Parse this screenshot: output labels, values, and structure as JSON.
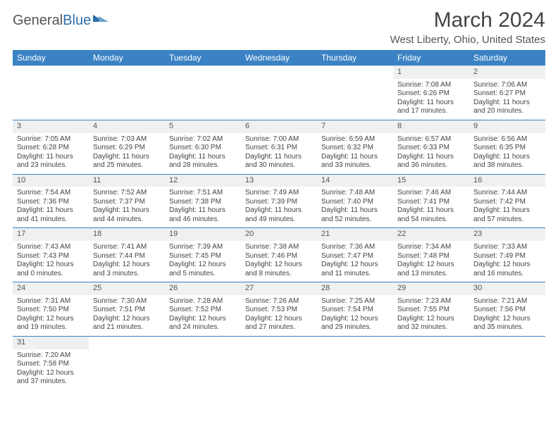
{
  "brand": {
    "general": "General",
    "blue": "Blue"
  },
  "title": "March 2024",
  "location": "West Liberty, Ohio, United States",
  "header_bg": "#3b82c4",
  "header_fg": "#ffffff",
  "rule_color": "#3b82c4",
  "daynum_bg": "#eef0f1",
  "text_color": "#444444",
  "weekdays": [
    "Sunday",
    "Monday",
    "Tuesday",
    "Wednesday",
    "Thursday",
    "Friday",
    "Saturday"
  ],
  "weeks": [
    [
      null,
      null,
      null,
      null,
      null,
      {
        "n": "1",
        "sr": "Sunrise: 7:08 AM",
        "ss": "Sunset: 6:26 PM",
        "d1": "Daylight: 11 hours",
        "d2": "and 17 minutes."
      },
      {
        "n": "2",
        "sr": "Sunrise: 7:06 AM",
        "ss": "Sunset: 6:27 PM",
        "d1": "Daylight: 11 hours",
        "d2": "and 20 minutes."
      }
    ],
    [
      {
        "n": "3",
        "sr": "Sunrise: 7:05 AM",
        "ss": "Sunset: 6:28 PM",
        "d1": "Daylight: 11 hours",
        "d2": "and 23 minutes."
      },
      {
        "n": "4",
        "sr": "Sunrise: 7:03 AM",
        "ss": "Sunset: 6:29 PM",
        "d1": "Daylight: 11 hours",
        "d2": "and 25 minutes."
      },
      {
        "n": "5",
        "sr": "Sunrise: 7:02 AM",
        "ss": "Sunset: 6:30 PM",
        "d1": "Daylight: 11 hours",
        "d2": "and 28 minutes."
      },
      {
        "n": "6",
        "sr": "Sunrise: 7:00 AM",
        "ss": "Sunset: 6:31 PM",
        "d1": "Daylight: 11 hours",
        "d2": "and 30 minutes."
      },
      {
        "n": "7",
        "sr": "Sunrise: 6:59 AM",
        "ss": "Sunset: 6:32 PM",
        "d1": "Daylight: 11 hours",
        "d2": "and 33 minutes."
      },
      {
        "n": "8",
        "sr": "Sunrise: 6:57 AM",
        "ss": "Sunset: 6:33 PM",
        "d1": "Daylight: 11 hours",
        "d2": "and 36 minutes."
      },
      {
        "n": "9",
        "sr": "Sunrise: 6:56 AM",
        "ss": "Sunset: 6:35 PM",
        "d1": "Daylight: 11 hours",
        "d2": "and 38 minutes."
      }
    ],
    [
      {
        "n": "10",
        "sr": "Sunrise: 7:54 AM",
        "ss": "Sunset: 7:36 PM",
        "d1": "Daylight: 11 hours",
        "d2": "and 41 minutes."
      },
      {
        "n": "11",
        "sr": "Sunrise: 7:52 AM",
        "ss": "Sunset: 7:37 PM",
        "d1": "Daylight: 11 hours",
        "d2": "and 44 minutes."
      },
      {
        "n": "12",
        "sr": "Sunrise: 7:51 AM",
        "ss": "Sunset: 7:38 PM",
        "d1": "Daylight: 11 hours",
        "d2": "and 46 minutes."
      },
      {
        "n": "13",
        "sr": "Sunrise: 7:49 AM",
        "ss": "Sunset: 7:39 PM",
        "d1": "Daylight: 11 hours",
        "d2": "and 49 minutes."
      },
      {
        "n": "14",
        "sr": "Sunrise: 7:48 AM",
        "ss": "Sunset: 7:40 PM",
        "d1": "Daylight: 11 hours",
        "d2": "and 52 minutes."
      },
      {
        "n": "15",
        "sr": "Sunrise: 7:46 AM",
        "ss": "Sunset: 7:41 PM",
        "d1": "Daylight: 11 hours",
        "d2": "and 54 minutes."
      },
      {
        "n": "16",
        "sr": "Sunrise: 7:44 AM",
        "ss": "Sunset: 7:42 PM",
        "d1": "Daylight: 11 hours",
        "d2": "and 57 minutes."
      }
    ],
    [
      {
        "n": "17",
        "sr": "Sunrise: 7:43 AM",
        "ss": "Sunset: 7:43 PM",
        "d1": "Daylight: 12 hours",
        "d2": "and 0 minutes."
      },
      {
        "n": "18",
        "sr": "Sunrise: 7:41 AM",
        "ss": "Sunset: 7:44 PM",
        "d1": "Daylight: 12 hours",
        "d2": "and 3 minutes."
      },
      {
        "n": "19",
        "sr": "Sunrise: 7:39 AM",
        "ss": "Sunset: 7:45 PM",
        "d1": "Daylight: 12 hours",
        "d2": "and 5 minutes."
      },
      {
        "n": "20",
        "sr": "Sunrise: 7:38 AM",
        "ss": "Sunset: 7:46 PM",
        "d1": "Daylight: 12 hours",
        "d2": "and 8 minutes."
      },
      {
        "n": "21",
        "sr": "Sunrise: 7:36 AM",
        "ss": "Sunset: 7:47 PM",
        "d1": "Daylight: 12 hours",
        "d2": "and 11 minutes."
      },
      {
        "n": "22",
        "sr": "Sunrise: 7:34 AM",
        "ss": "Sunset: 7:48 PM",
        "d1": "Daylight: 12 hours",
        "d2": "and 13 minutes."
      },
      {
        "n": "23",
        "sr": "Sunrise: 7:33 AM",
        "ss": "Sunset: 7:49 PM",
        "d1": "Daylight: 12 hours",
        "d2": "and 16 minutes."
      }
    ],
    [
      {
        "n": "24",
        "sr": "Sunrise: 7:31 AM",
        "ss": "Sunset: 7:50 PM",
        "d1": "Daylight: 12 hours",
        "d2": "and 19 minutes."
      },
      {
        "n": "25",
        "sr": "Sunrise: 7:30 AM",
        "ss": "Sunset: 7:51 PM",
        "d1": "Daylight: 12 hours",
        "d2": "and 21 minutes."
      },
      {
        "n": "26",
        "sr": "Sunrise: 7:28 AM",
        "ss": "Sunset: 7:52 PM",
        "d1": "Daylight: 12 hours",
        "d2": "and 24 minutes."
      },
      {
        "n": "27",
        "sr": "Sunrise: 7:26 AM",
        "ss": "Sunset: 7:53 PM",
        "d1": "Daylight: 12 hours",
        "d2": "and 27 minutes."
      },
      {
        "n": "28",
        "sr": "Sunrise: 7:25 AM",
        "ss": "Sunset: 7:54 PM",
        "d1": "Daylight: 12 hours",
        "d2": "and 29 minutes."
      },
      {
        "n": "29",
        "sr": "Sunrise: 7:23 AM",
        "ss": "Sunset: 7:55 PM",
        "d1": "Daylight: 12 hours",
        "d2": "and 32 minutes."
      },
      {
        "n": "30",
        "sr": "Sunrise: 7:21 AM",
        "ss": "Sunset: 7:56 PM",
        "d1": "Daylight: 12 hours",
        "d2": "and 35 minutes."
      }
    ],
    [
      {
        "n": "31",
        "sr": "Sunrise: 7:20 AM",
        "ss": "Sunset: 7:58 PM",
        "d1": "Daylight: 12 hours",
        "d2": "and 37 minutes."
      },
      null,
      null,
      null,
      null,
      null,
      null
    ]
  ]
}
